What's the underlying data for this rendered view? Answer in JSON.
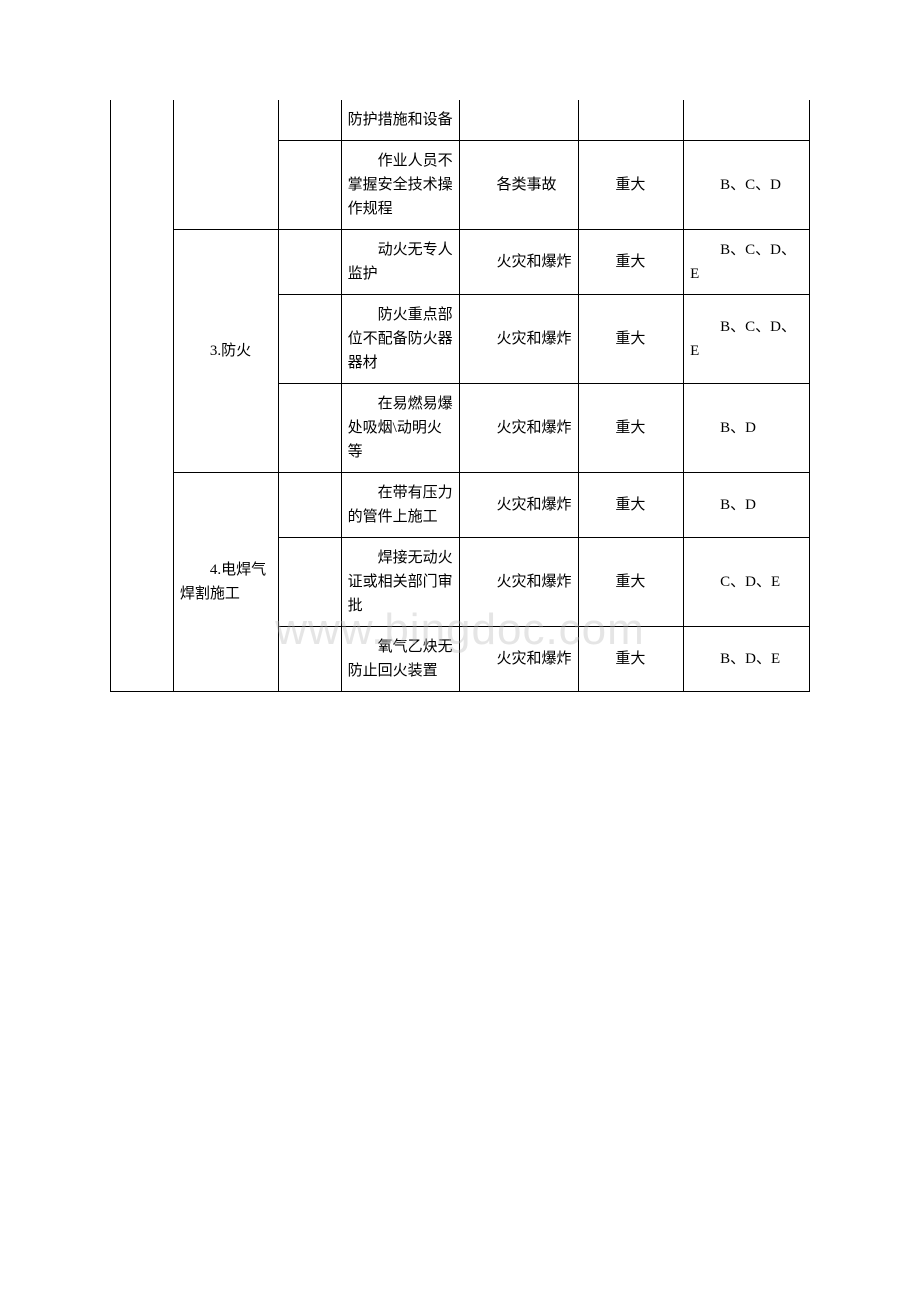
{
  "watermark": "www.bingdoc.com",
  "table": {
    "border_color": "#000000",
    "background_color": "#ffffff",
    "text_color": "#000000",
    "font_size": 15,
    "rows": [
      {
        "col1": "",
        "col2": "",
        "col3": "",
        "col4": "防护措施和设备",
        "col5": "",
        "col6": "",
        "col7": ""
      },
      {
        "col4": "作业人员不掌握安全技术操作规程",
        "col5": "各类事故",
        "col6": "重大",
        "col7": "B、C、D"
      },
      {
        "col2": "3.防火",
        "col4": "动火无专人监护",
        "col5": "火灾和爆炸",
        "col6": "重大",
        "col7": "B、C、D、E"
      },
      {
        "col4": "防火重点部位不配备防火器器材",
        "col5": "火灾和爆炸",
        "col6": "重大",
        "col7": "B、C、D、E"
      },
      {
        "col4": "在易燃易爆处吸烟\\动明火等",
        "col5": "火灾和爆炸",
        "col6": "重大",
        "col7": "B、D"
      },
      {
        "col2": "4.电焊气焊割施工",
        "col4": "在带有压力的管件上施工",
        "col5": "火灾和爆炸",
        "col6": "重大",
        "col7": "B、D"
      },
      {
        "col4": "焊接无动火证或相关部门审批",
        "col5": "火灾和爆炸",
        "col6": "重大",
        "col7": "C、D、E"
      },
      {
        "col4": "氧气乙炔无防止回火装置",
        "col5": "火灾和爆炸",
        "col6": "重大",
        "col7": "B、D、E"
      }
    ]
  }
}
